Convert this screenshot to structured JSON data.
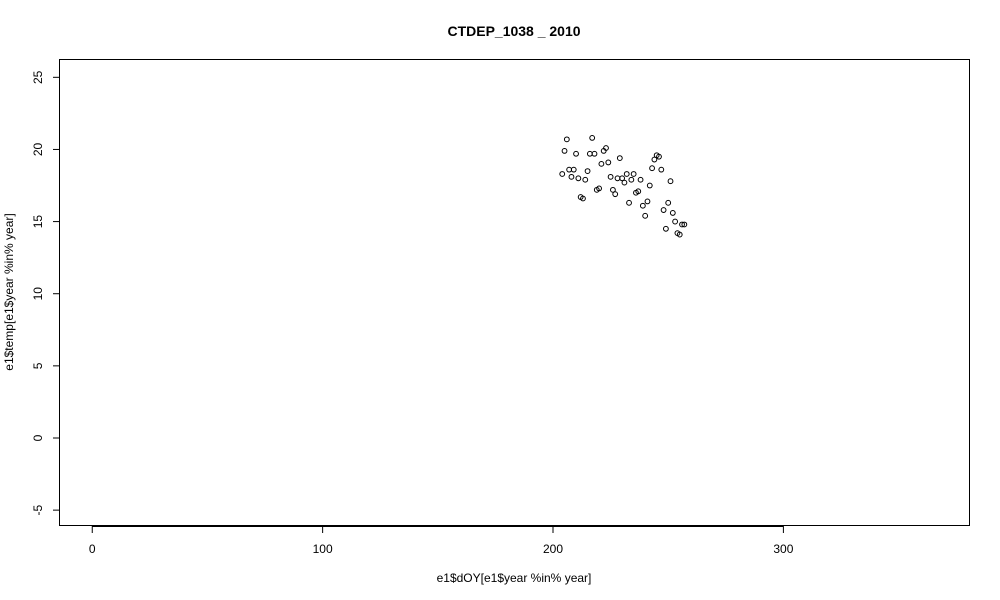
{
  "chart_data": {
    "type": "scatter",
    "title": "CTDEP_1038 _ 2010",
    "xlabel": "e1$dOY[e1$year %in% year]",
    "ylabel": "e1$temp[e1$year %in% year]",
    "xlim": [
      -14,
      381
    ],
    "ylim": [
      -6.1,
      26.2
    ],
    "x_ticks": [
      0,
      100,
      200,
      300
    ],
    "y_ticks": [
      -5,
      0,
      5,
      10,
      15,
      20,
      25
    ],
    "grid": false,
    "legend": "none",
    "point_color": "#000000",
    "points": [
      {
        "x": 204,
        "y": 18.3
      },
      {
        "x": 205,
        "y": 19.9
      },
      {
        "x": 206,
        "y": 20.7
      },
      {
        "x": 207,
        "y": 18.6
      },
      {
        "x": 208,
        "y": 18.1
      },
      {
        "x": 209,
        "y": 18.6
      },
      {
        "x": 210,
        "y": 19.7
      },
      {
        "x": 211,
        "y": 18.0
      },
      {
        "x": 212,
        "y": 16.7
      },
      {
        "x": 213,
        "y": 16.6
      },
      {
        "x": 214,
        "y": 17.9
      },
      {
        "x": 215,
        "y": 18.5
      },
      {
        "x": 216,
        "y": 19.7
      },
      {
        "x": 217,
        "y": 20.8
      },
      {
        "x": 218,
        "y": 19.7
      },
      {
        "x": 219,
        "y": 17.2
      },
      {
        "x": 220,
        "y": 17.3
      },
      {
        "x": 221,
        "y": 19.0
      },
      {
        "x": 222,
        "y": 19.9
      },
      {
        "x": 223,
        "y": 20.1
      },
      {
        "x": 224,
        "y": 19.1
      },
      {
        "x": 225,
        "y": 18.1
      },
      {
        "x": 226,
        "y": 17.2
      },
      {
        "x": 227,
        "y": 16.9
      },
      {
        "x": 228,
        "y": 18.0
      },
      {
        "x": 229,
        "y": 19.4
      },
      {
        "x": 230,
        "y": 18.0
      },
      {
        "x": 231,
        "y": 17.7
      },
      {
        "x": 232,
        "y": 18.3
      },
      {
        "x": 233,
        "y": 16.3
      },
      {
        "x": 234,
        "y": 17.9
      },
      {
        "x": 235,
        "y": 18.3
      },
      {
        "x": 236,
        "y": 17.0
      },
      {
        "x": 237,
        "y": 17.1
      },
      {
        "x": 238,
        "y": 17.9
      },
      {
        "x": 239,
        "y": 16.1
      },
      {
        "x": 240,
        "y": 15.4
      },
      {
        "x": 241,
        "y": 16.4
      },
      {
        "x": 242,
        "y": 17.5
      },
      {
        "x": 243,
        "y": 18.7
      },
      {
        "x": 244,
        "y": 19.3
      },
      {
        "x": 245,
        "y": 19.6
      },
      {
        "x": 246,
        "y": 19.5
      },
      {
        "x": 247,
        "y": 18.6
      },
      {
        "x": 248,
        "y": 15.8
      },
      {
        "x": 249,
        "y": 14.5
      },
      {
        "x": 250,
        "y": 16.3
      },
      {
        "x": 251,
        "y": 17.8
      },
      {
        "x": 252,
        "y": 15.6
      },
      {
        "x": 253,
        "y": 15.0
      },
      {
        "x": 254,
        "y": 14.2
      },
      {
        "x": 255,
        "y": 14.1
      },
      {
        "x": 256,
        "y": 14.8
      },
      {
        "x": 257,
        "y": 14.8
      }
    ]
  }
}
